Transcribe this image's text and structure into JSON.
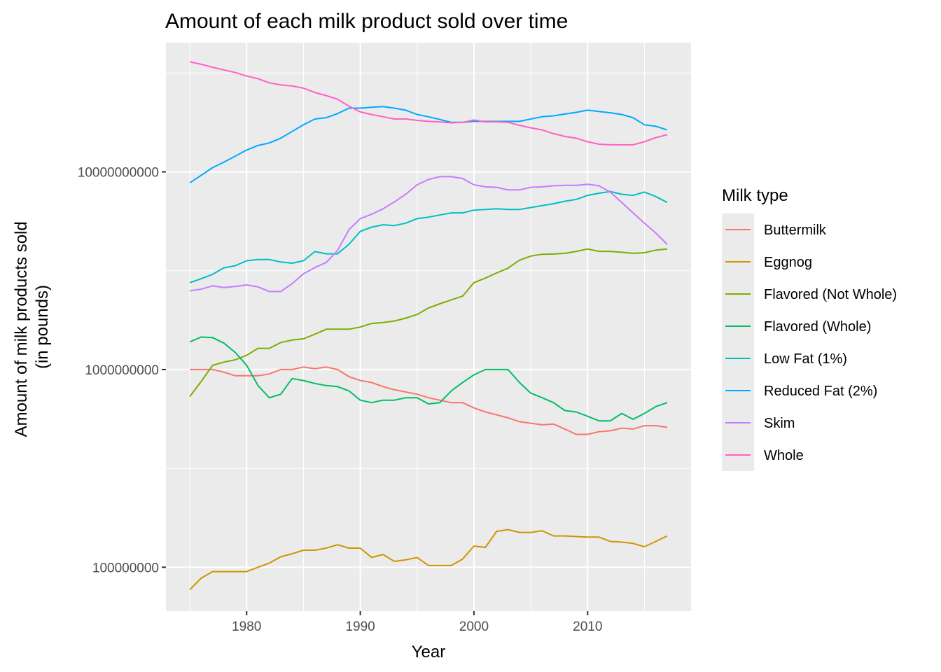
{
  "chart_data": {
    "type": "line",
    "title": "Amount of each milk product sold over time",
    "xlabel": "Year",
    "ylabel": [
      "Amount of milk products sold",
      "(in pounds)"
    ],
    "y_scale": "log10",
    "xlim": [
      1972.9,
      2019.1
    ],
    "ylim": [
      60000000,
      45000000000
    ],
    "x_ticks": [
      1980,
      1990,
      2000,
      2010
    ],
    "x_tick_labels": [
      "1980",
      "1990",
      "2000",
      "2010"
    ],
    "y_ticks": [
      100000000,
      1000000000,
      10000000000
    ],
    "y_tick_labels": [
      "100000000",
      "1000000000",
      "10000000000"
    ],
    "grid": true,
    "legend": {
      "title": "Milk type",
      "position": "right"
    },
    "years": [
      1975,
      1976,
      1977,
      1978,
      1979,
      1980,
      1981,
      1982,
      1983,
      1984,
      1985,
      1986,
      1987,
      1988,
      1989,
      1990,
      1991,
      1992,
      1993,
      1994,
      1995,
      1996,
      1997,
      1998,
      1999,
      2000,
      2001,
      2002,
      2003,
      2004,
      2005,
      2006,
      2007,
      2008,
      2009,
      2010,
      2011,
      2012,
      2013,
      2014,
      2015,
      2016,
      2017
    ],
    "series": [
      {
        "name": "Buttermilk",
        "color": "#F8766D",
        "values": [
          1000000000.0,
          1000000000.0,
          1000000000.0,
          970000000.0,
          930000000.0,
          930000000.0,
          930000000.0,
          950000000.0,
          1000000000.0,
          1000000000.0,
          1030000000.0,
          1010000000.0,
          1030000000.0,
          1000000000.0,
          920000000.0,
          880000000.0,
          860000000.0,
          820000000.0,
          790000000.0,
          770000000.0,
          750000000.0,
          720000000.0,
          700000000.0,
          680000000.0,
          680000000.0,
          640000000.0,
          610000000.0,
          590000000.0,
          570000000.0,
          545000000.0,
          535000000.0,
          525000000.0,
          530000000.0,
          500000000.0,
          470000000.0,
          470000000.0,
          485000000.0,
          490000000.0,
          505000000.0,
          500000000.0,
          520000000.0,
          520000000.0,
          510000000.0
        ]
      },
      {
        "name": "Eggnog",
        "color": "#CD9600",
        "values": [
          77000000.0,
          88000000.0,
          95000000.0,
          95000000.0,
          95000000.0,
          95000000.0,
          100000000.0,
          105000000.0,
          113000000.0,
          117000000.0,
          122000000.0,
          122000000.0,
          125000000.0,
          130000000.0,
          125000000.0,
          125000000.0,
          112000000.0,
          116000000.0,
          107000000.0,
          109000000.0,
          112000000.0,
          102000000.0,
          102000000.0,
          102000000.0,
          110000000.0,
          128000000.0,
          126000000.0,
          152000000.0,
          155000000.0,
          150000000.0,
          150000000.0,
          153000000.0,
          144000000.0,
          144000000.0,
          143000000.0,
          142000000.0,
          142000000.0,
          135000000.0,
          134000000.0,
          132000000.0,
          127000000.0,
          135000000.0,
          144000000.0
        ]
      },
      {
        "name": "Flavored  (Not Whole)",
        "color": "#7CAE00",
        "values": [
          730000000.0,
          870000000.0,
          1050000000.0,
          1090000000.0,
          1120000000.0,
          1180000000.0,
          1280000000.0,
          1280000000.0,
          1370000000.0,
          1410000000.0,
          1430000000.0,
          1510000000.0,
          1600000000.0,
          1600000000.0,
          1600000000.0,
          1640000000.0,
          1710000000.0,
          1730000000.0,
          1760000000.0,
          1820000000.0,
          1900000000.0,
          2050000000.0,
          2150000000.0,
          2250000000.0,
          2350000000.0,
          2750000000.0,
          2900000000.0,
          3080000000.0,
          3260000000.0,
          3570000000.0,
          3750000000.0,
          3830000000.0,
          3840000000.0,
          3870000000.0,
          3960000000.0,
          4070000000.0,
          3960000000.0,
          3960000000.0,
          3920000000.0,
          3870000000.0,
          3900000000.0,
          4020000000.0,
          4070000000.0
        ]
      },
      {
        "name": "Flavored (Whole)",
        "color": "#00BE67",
        "values": [
          1380000000.0,
          1460000000.0,
          1450000000.0,
          1360000000.0,
          1220000000.0,
          1050000000.0,
          830000000.0,
          720000000.0,
          750000000.0,
          900000000.0,
          880000000.0,
          850000000.0,
          830000000.0,
          820000000.0,
          780000000.0,
          700000000.0,
          680000000.0,
          700000000.0,
          700000000.0,
          720000000.0,
          720000000.0,
          670000000.0,
          680000000.0,
          780000000.0,
          860000000.0,
          940000000.0,
          1000000000.0,
          1000000000.0,
          1000000000.0,
          860000000.0,
          760000000.0,
          720000000.0,
          680000000.0,
          620000000.0,
          610000000.0,
          580000000.0,
          550000000.0,
          550000000.0,
          600000000.0,
          560000000.0,
          600000000.0,
          650000000.0,
          680000000.0
        ]
      },
      {
        "name": "Low Fat (1%)",
        "color": "#00BFC4",
        "values": [
          2750000000.0,
          2880000000.0,
          3030000000.0,
          3270000000.0,
          3350000000.0,
          3550000000.0,
          3600000000.0,
          3600000000.0,
          3500000000.0,
          3450000000.0,
          3550000000.0,
          3950000000.0,
          3850000000.0,
          3850000000.0,
          4300000000.0,
          5000000000.0,
          5250000000.0,
          5400000000.0,
          5350000000.0,
          5500000000.0,
          5800000000.0,
          5900000000.0,
          6050000000.0,
          6200000000.0,
          6200000000.0,
          6400000000.0,
          6450000000.0,
          6500000000.0,
          6450000000.0,
          6450000000.0,
          6600000000.0,
          6750000000.0,
          6900000000.0,
          7100000000.0,
          7250000000.0,
          7600000000.0,
          7800000000.0,
          7950000000.0,
          7700000000.0,
          7600000000.0,
          7900000000.0,
          7500000000.0,
          7000000000.0
        ]
      },
      {
        "name": "Reduced Fat (2%)",
        "color": "#00A9FF",
        "values": [
          8800000000.0,
          9600000000.0,
          10500000000.0,
          11200000000.0,
          12000000000.0,
          12900000000.0,
          13600000000.0,
          14000000000.0,
          14800000000.0,
          16000000000.0,
          17300000000.0,
          18500000000.0,
          18800000000.0,
          19700000000.0,
          21000000000.0,
          21000000000.0,
          21200000000.0,
          21400000000.0,
          21000000000.0,
          20500000000.0,
          19500000000.0,
          19000000000.0,
          18400000000.0,
          17800000000.0,
          17800000000.0,
          18000000000.0,
          18000000000.0,
          18000000000.0,
          18000000000.0,
          18000000000.0,
          18500000000.0,
          19000000000.0,
          19200000000.0,
          19600000000.0,
          20000000000.0,
          20500000000.0,
          20200000000.0,
          19900000000.0,
          19500000000.0,
          18800000000.0,
          17300000000.0,
          17000000000.0,
          16300000000.0
        ]
      },
      {
        "name": "Skim",
        "color": "#C77CFF",
        "values": [
          2500000000.0,
          2550000000.0,
          2650000000.0,
          2600000000.0,
          2630000000.0,
          2680000000.0,
          2620000000.0,
          2480000000.0,
          2480000000.0,
          2720000000.0,
          3050000000.0,
          3280000000.0,
          3480000000.0,
          4000000000.0,
          5100000000.0,
          5800000000.0,
          6100000000.0,
          6500000000.0,
          7050000000.0,
          7700000000.0,
          8600000000.0,
          9150000000.0,
          9450000000.0,
          9450000000.0,
          9250000000.0,
          8600000000.0,
          8400000000.0,
          8350000000.0,
          8100000000.0,
          8100000000.0,
          8350000000.0,
          8400000000.0,
          8500000000.0,
          8550000000.0,
          8550000000.0,
          8650000000.0,
          8500000000.0,
          7900000000.0,
          7000000000.0,
          6200000000.0,
          5500000000.0,
          4900000000.0,
          4300000000.0
        ]
      },
      {
        "name": "Whole",
        "color": "#FF61C3",
        "values": [
          36000000000.0,
          35000000000.0,
          33800000000.0,
          32800000000.0,
          31800000000.0,
          30500000000.0,
          29600000000.0,
          28200000000.0,
          27500000000.0,
          27200000000.0,
          26500000000.0,
          25200000000.0,
          24300000000.0,
          23300000000.0,
          21500000000.0,
          20100000000.0,
          19500000000.0,
          19000000000.0,
          18500000000.0,
          18500000000.0,
          18200000000.0,
          18000000000.0,
          17900000000.0,
          17700000000.0,
          17800000000.0,
          18300000000.0,
          17900000000.0,
          17900000000.0,
          17800000000.0,
          17200000000.0,
          16700000000.0,
          16300000000.0,
          15600000000.0,
          15100000000.0,
          14800000000.0,
          14200000000.0,
          13800000000.0,
          13700000000.0,
          13700000000.0,
          13700000000.0,
          14200000000.0,
          14900000000.0,
          15400000000.0
        ]
      }
    ]
  }
}
